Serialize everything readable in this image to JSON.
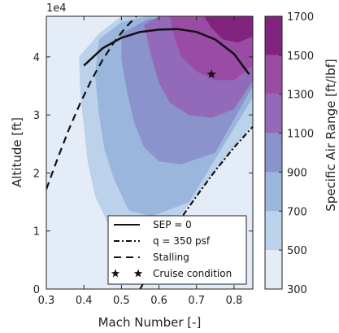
{
  "chart_data": {
    "type": "contour",
    "xlabel": "Mach Number [-]",
    "ylabel": "Altitude [ft]",
    "y_exponent_label": "1e4",
    "xlim": [
      0.3,
      0.85
    ],
    "ylim": [
      0,
      4.7
    ],
    "x_ticks": [
      "0.3",
      "0.4",
      "0.5",
      "0.6",
      "0.7",
      "0.8"
    ],
    "y_ticks": [
      "0",
      "1",
      "2",
      "3",
      "4"
    ],
    "colorbar": {
      "label": "Specific Air Range [ft/lbf]",
      "levels": [
        300,
        500,
        700,
        900,
        1100,
        1300,
        1500,
        1700
      ],
      "tick_labels": [
        "300",
        "500",
        "700",
        "900",
        "1100",
        "1300",
        "1500",
        "1700"
      ],
      "colors": [
        "#e3ecf7",
        "#bcd1ea",
        "#9ab6dc",
        "#8a93cb",
        "#9369b9",
        "#9a4ba4",
        "#82247e"
      ]
    },
    "contours": [
      {
        "level_min": 500,
        "level_max": 700,
        "color": "#bcd1ea",
        "x": [
          0.387,
          0.44,
          0.5,
          0.57,
          0.63,
          0.7,
          0.77,
          0.85,
          0.85,
          0.6,
          0.52,
          0.47,
          0.43,
          0.41,
          0.4,
          0.39,
          0.387
        ],
        "y": [
          4.0,
          4.4,
          4.7,
          4.7,
          4.7,
          4.7,
          4.7,
          4.7,
          2.85,
          0.8,
          0.8,
          1.05,
          1.6,
          2.2,
          2.8,
          3.4,
          4.0
        ]
      },
      {
        "level_min": 700,
        "level_max": 900,
        "color": "#9ab6dc",
        "x": [
          0.44,
          0.5,
          0.57,
          0.64,
          0.72,
          0.8,
          0.85,
          0.85,
          0.68,
          0.58,
          0.52,
          0.48,
          0.455,
          0.44,
          0.43,
          0.44
        ],
        "y": [
          4.3,
          4.6,
          4.7,
          4.7,
          4.7,
          4.7,
          4.7,
          3.3,
          1.5,
          1.25,
          1.35,
          1.9,
          2.4,
          3.0,
          3.7,
          4.3
        ]
      },
      {
        "level_min": 900,
        "level_max": 1100,
        "color": "#8a93cb",
        "x": [
          0.5,
          0.57,
          0.65,
          0.73,
          0.8,
          0.85,
          0.85,
          0.75,
          0.66,
          0.6,
          0.56,
          0.535,
          0.515,
          0.5,
          0.5
        ],
        "y": [
          4.4,
          4.65,
          4.7,
          4.7,
          4.7,
          4.7,
          3.5,
          2.35,
          2.15,
          2.2,
          2.45,
          2.85,
          3.4,
          3.95,
          4.4
        ]
      },
      {
        "level_min": 1100,
        "level_max": 1300,
        "color": "#9369b9",
        "x": [
          0.56,
          0.6,
          0.65,
          0.72,
          0.79,
          0.85,
          0.85,
          0.8,
          0.74,
          0.68,
          0.63,
          0.6,
          0.58,
          0.56
        ],
        "y": [
          4.55,
          4.7,
          4.7,
          4.7,
          4.7,
          4.7,
          3.6,
          3.1,
          2.95,
          3.0,
          3.2,
          3.55,
          4.0,
          4.55
        ]
      },
      {
        "level_min": 1300,
        "level_max": 1500,
        "color": "#9a4ba4",
        "x": [
          0.63,
          0.68,
          0.74,
          0.8,
          0.85,
          0.85,
          0.8,
          0.75,
          0.7,
          0.66,
          0.64,
          0.63
        ],
        "y": [
          4.7,
          4.7,
          4.7,
          4.7,
          4.7,
          3.85,
          3.6,
          3.6,
          3.75,
          4.0,
          4.35,
          4.7
        ]
      },
      {
        "level_min": 1500,
        "level_max": 1700,
        "color": "#82247e",
        "x": [
          0.72,
          0.77,
          0.81,
          0.85,
          0.85,
          0.81,
          0.77,
          0.74,
          0.72
        ],
        "y": [
          4.7,
          4.7,
          4.7,
          4.7,
          4.35,
          4.25,
          4.3,
          4.5,
          4.7
        ]
      }
    ],
    "series": [
      {
        "name": "SEP = 0",
        "style": "solid",
        "x": [
          0.4,
          0.45,
          0.5,
          0.55,
          0.6,
          0.65,
          0.7,
          0.75,
          0.8,
          0.84
        ],
        "y": [
          3.85,
          4.15,
          4.33,
          4.43,
          4.47,
          4.48,
          4.43,
          4.3,
          4.05,
          3.7
        ]
      },
      {
        "name": "q = 350 psf",
        "style": "dashdot",
        "x": [
          0.55,
          0.6,
          0.65,
          0.7,
          0.75,
          0.8,
          0.85
        ],
        "y": [
          0.0,
          0.62,
          1.14,
          1.6,
          2.04,
          2.44,
          2.8
        ]
      },
      {
        "name": "Stalling",
        "style": "dashed",
        "x": [
          0.3,
          0.33,
          0.36,
          0.39,
          0.42,
          0.45,
          0.48,
          0.51,
          0.54
        ],
        "y": [
          1.72,
          2.25,
          2.75,
          3.2,
          3.6,
          3.95,
          4.25,
          4.5,
          4.7
        ]
      },
      {
        "name": "Cruise condition",
        "style": "marker-star",
        "x": [
          0.74
        ],
        "y": [
          3.7
        ]
      }
    ],
    "legend": {
      "placement": "lower-right",
      "entries": [
        "SEP = 0",
        "q = 350 psf",
        "Stalling",
        "Cruise condition"
      ]
    }
  }
}
